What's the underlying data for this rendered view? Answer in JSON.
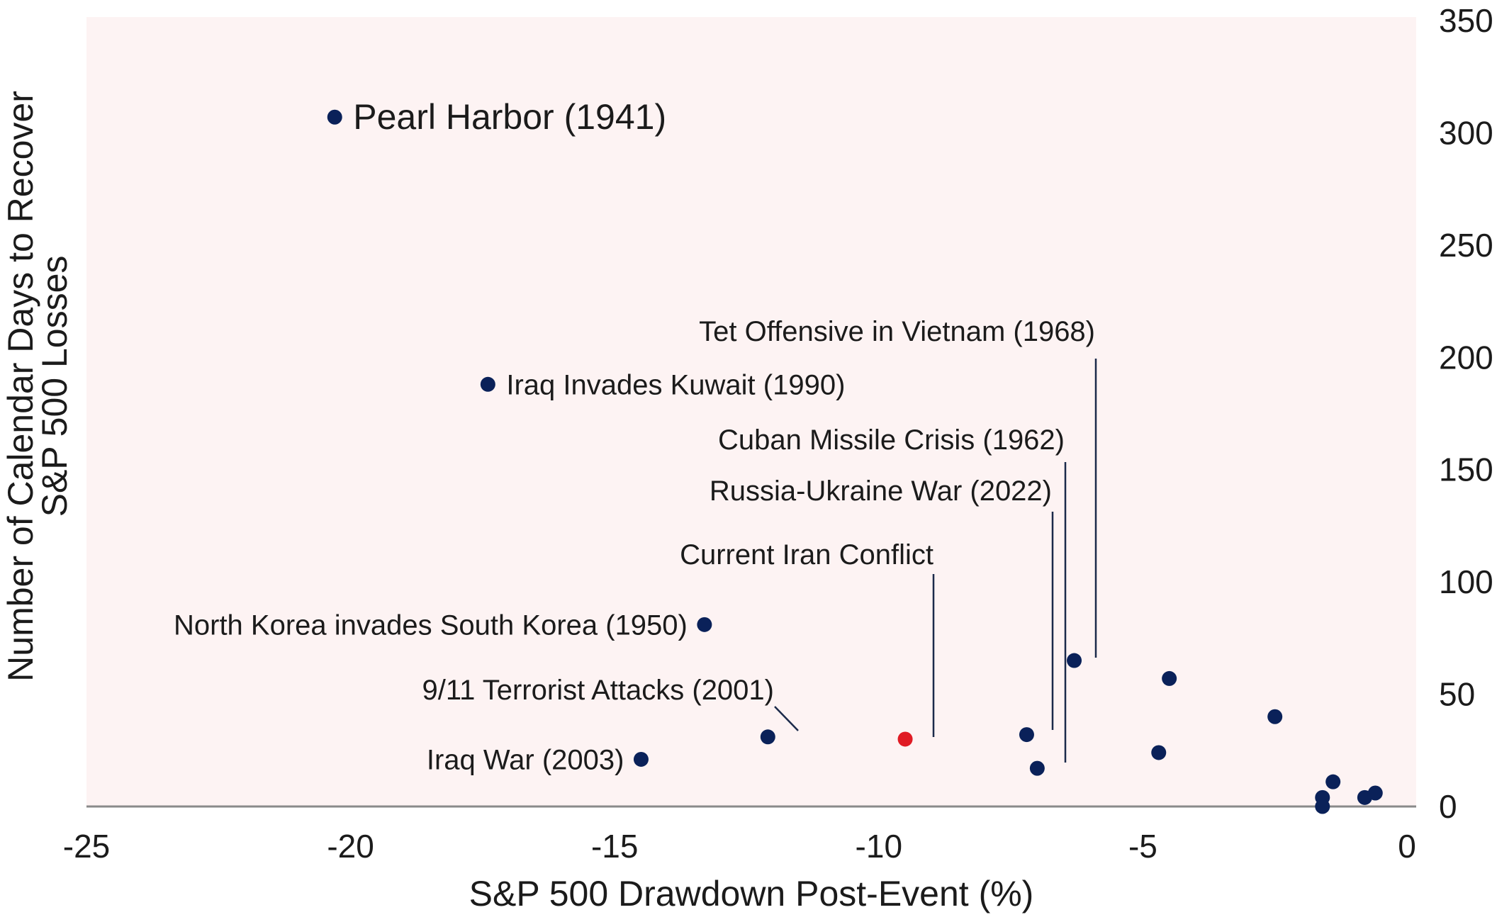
{
  "chart_data": {
    "type": "scatter",
    "xlabel": "S&P 500 Drawdown Post-Event (%)",
    "ylabel_lines": [
      "Number of Calendar Days to Recover",
      "S&P 500 Losses"
    ],
    "xlim": [
      -25,
      0
    ],
    "ylim": [
      0,
      350
    ],
    "xticks": [
      -25,
      -20,
      -15,
      -10,
      -5,
      0
    ],
    "yticks": [
      0,
      50,
      100,
      150,
      200,
      250,
      300,
      350
    ],
    "x_tick_labels": [
      "-25",
      "-20",
      "-15",
      "-10",
      "-5",
      "0"
    ],
    "y_tick_labels": [
      "0",
      "50",
      "100",
      "150",
      "200",
      "250",
      "300",
      "350"
    ],
    "grid": false,
    "colors": {
      "point": "#0a2159",
      "highlight": "#e01b24",
      "plot_bg": "#fdf3f3",
      "leader": "#1b2a4a",
      "axis": "#8a8a8a"
    },
    "points": [
      {
        "x": -20.3,
        "y": 307,
        "label": "Pearl Harbor (1941)",
        "highlight": false
      },
      {
        "x": -17.4,
        "y": 188,
        "label": "Iraq Invades Kuwait (1990)",
        "highlight": false
      },
      {
        "x": -13.3,
        "y": 81,
        "label": "North Korea invades South Korea (1950)",
        "highlight": false
      },
      {
        "x": -12.1,
        "y": 31,
        "label": "9/11 Terrorist Attacks (2001)",
        "highlight": false
      },
      {
        "x": -14.5,
        "y": 21,
        "label": "Iraq War (2003)",
        "highlight": false
      },
      {
        "x": -9.5,
        "y": 30,
        "label": "Current Iran Conflict",
        "highlight": true
      },
      {
        "x": -7.2,
        "y": 32,
        "label": "Russia-Ukraine War (2022)",
        "highlight": false
      },
      {
        "x": -7.0,
        "y": 17,
        "label": "Cuban Missile Crisis (1962)",
        "highlight": false
      },
      {
        "x": -6.3,
        "y": 65,
        "label": "Tet Offensive in Vietnam (1968)",
        "highlight": false
      },
      {
        "x": -4.5,
        "y": 57,
        "label": "",
        "highlight": false
      },
      {
        "x": -4.7,
        "y": 24,
        "label": "",
        "highlight": false
      },
      {
        "x": -2.5,
        "y": 40,
        "label": "",
        "highlight": false
      },
      {
        "x": -1.4,
        "y": 11,
        "label": "",
        "highlight": false
      },
      {
        "x": -1.6,
        "y": 4,
        "label": "",
        "highlight": false
      },
      {
        "x": -1.6,
        "y": 0,
        "label": "",
        "highlight": false
      },
      {
        "x": -0.8,
        "y": 4,
        "label": "",
        "highlight": false
      },
      {
        "x": -0.6,
        "y": 6,
        "label": "",
        "highlight": false
      }
    ]
  }
}
